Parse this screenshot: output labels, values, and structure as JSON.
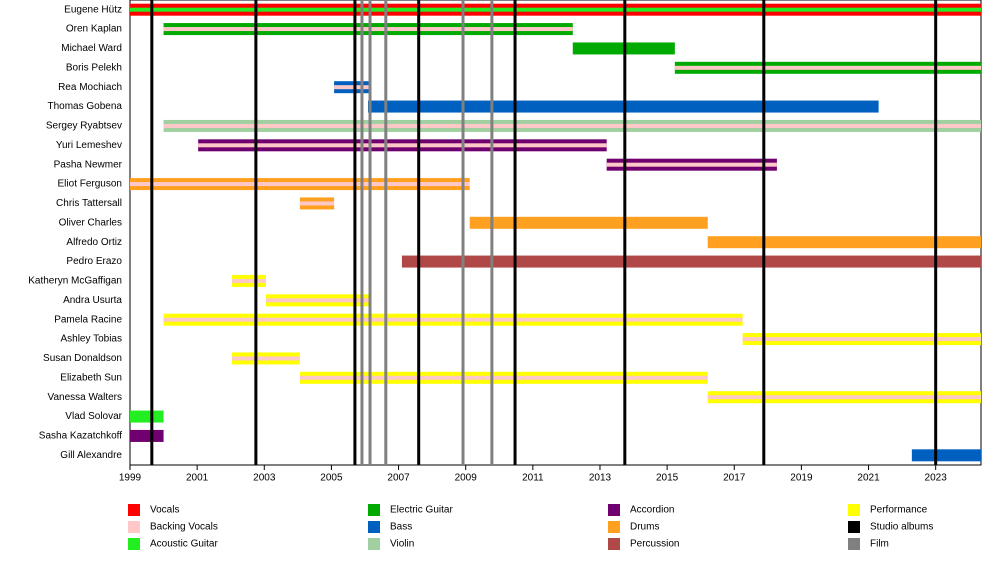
{
  "chart_data": {
    "type": "timeline",
    "xlim": [
      1999,
      2024.35
    ],
    "xticks": [
      1999,
      2001,
      2003,
      2005,
      2007,
      2009,
      2011,
      2013,
      2015,
      2017,
      2019,
      2021,
      2023
    ],
    "roles": [
      {
        "name": "Vocals",
        "color": "#ff0000"
      },
      {
        "name": "Backing Vocals",
        "color": "#ffc8c8"
      },
      {
        "name": "Acoustic Guitar",
        "color": "#22ee22"
      },
      {
        "name": "Electric Guitar",
        "color": "#00aa00"
      },
      {
        "name": "Bass",
        "color": "#0060c0"
      },
      {
        "name": "Violin",
        "color": "#a0d0a0"
      },
      {
        "name": "Accordion",
        "color": "#700070"
      },
      {
        "name": "Drums",
        "color": "#ffa020"
      },
      {
        "name": "Percussion",
        "color": "#b04848"
      },
      {
        "name": "Performance",
        "color": "#ffff00"
      }
    ],
    "lines": [
      {
        "name": "Studio albums",
        "color": "#000000",
        "x": [
          1999.65,
          2002.75,
          2005.7,
          2007.6,
          2010.47,
          2013.74,
          2017.88,
          2023.0
        ]
      },
      {
        "name": "Film",
        "color": "#808080",
        "x": [
          2005.91,
          2006.15,
          2006.62,
          2008.92,
          2009.78
        ]
      }
    ],
    "members": [
      {
        "name": "Eugene Hütz",
        "bars": [
          {
            "start": 1999,
            "end": 2024.35,
            "roles": [
              "Vocals",
              "Acoustic Guitar"
            ]
          }
        ]
      },
      {
        "name": "Oren Kaplan",
        "bars": [
          {
            "start": 2000,
            "end": 2012.19,
            "roles": [
              "Electric Guitar",
              "Backing Vocals"
            ]
          }
        ]
      },
      {
        "name": "Michael Ward",
        "bars": [
          {
            "start": 2012.19,
            "end": 2015.23,
            "roles": [
              "Electric Guitar"
            ]
          }
        ]
      },
      {
        "name": "Boris Pelekh",
        "bars": [
          {
            "start": 2015.23,
            "end": 2024.35,
            "roles": [
              "Electric Guitar",
              "Backing Vocals"
            ]
          }
        ]
      },
      {
        "name": "Rea Mochiach",
        "bars": [
          {
            "start": 2005.08,
            "end": 2006.15,
            "roles": [
              "Bass",
              "Backing Vocals"
            ]
          }
        ]
      },
      {
        "name": "Thomas Gobena",
        "bars": [
          {
            "start": 2006.09,
            "end": 2021.3,
            "roles": [
              "Bass"
            ]
          }
        ]
      },
      {
        "name": "Sergey Ryabtsev",
        "bars": [
          {
            "start": 2000,
            "end": 2024.35,
            "roles": [
              "Violin",
              "Backing Vocals"
            ]
          }
        ]
      },
      {
        "name": "Yuri Lemeshev",
        "bars": [
          {
            "start": 2001.03,
            "end": 2013.2,
            "roles": [
              "Accordion",
              "Backing Vocals"
            ]
          }
        ]
      },
      {
        "name": "Pasha Newmer",
        "bars": [
          {
            "start": 2013.2,
            "end": 2018.27,
            "roles": [
              "Accordion",
              "Backing Vocals"
            ]
          }
        ]
      },
      {
        "name": "Eliot Ferguson",
        "bars": [
          {
            "start": 1999,
            "end": 2009.12,
            "roles": [
              "Drums",
              "Backing Vocals"
            ]
          }
        ]
      },
      {
        "name": "Chris Tattersall",
        "bars": [
          {
            "start": 2004.06,
            "end": 2005.08,
            "roles": [
              "Drums",
              "Backing Vocals"
            ]
          }
        ]
      },
      {
        "name": "Oliver Charles",
        "bars": [
          {
            "start": 2009.12,
            "end": 2016.21,
            "roles": [
              "Drums"
            ]
          }
        ]
      },
      {
        "name": "Alfredo Ortiz",
        "bars": [
          {
            "start": 2016.21,
            "end": 2024.35,
            "roles": [
              "Drums"
            ]
          }
        ]
      },
      {
        "name": "Pedro Erazo",
        "bars": [
          {
            "start": 2007.1,
            "end": 2024.35,
            "roles": [
              "Percussion"
            ]
          }
        ]
      },
      {
        "name": "Katheryn McGaffigan",
        "bars": [
          {
            "start": 2002.04,
            "end": 2003.05,
            "roles": [
              "Performance",
              "Backing Vocals"
            ]
          }
        ]
      },
      {
        "name": "Andra Usurta",
        "bars": [
          {
            "start": 2003.05,
            "end": 2006.15,
            "roles": [
              "Performance",
              "Backing Vocals"
            ]
          }
        ]
      },
      {
        "name": "Pamela Racine",
        "bars": [
          {
            "start": 2000,
            "end": 2017.25,
            "roles": [
              "Performance",
              "Backing Vocals"
            ]
          }
        ]
      },
      {
        "name": "Ashley Tobias",
        "bars": [
          {
            "start": 2017.25,
            "end": 2024.35,
            "roles": [
              "Performance",
              "Backing Vocals"
            ]
          }
        ]
      },
      {
        "name": "Susan Donaldson",
        "bars": [
          {
            "start": 2002.04,
            "end": 2004.06,
            "roles": [
              "Performance",
              "Backing Vocals"
            ]
          }
        ]
      },
      {
        "name": "Elizabeth Sun",
        "bars": [
          {
            "start": 2004.06,
            "end": 2016.21,
            "roles": [
              "Performance",
              "Backing Vocals"
            ]
          }
        ]
      },
      {
        "name": "Vanessa Walters",
        "bars": [
          {
            "start": 2016.21,
            "end": 2024.35,
            "roles": [
              "Performance",
              "Backing Vocals"
            ]
          }
        ]
      },
      {
        "name": "Vlad Solovar",
        "bars": [
          {
            "start": 1999,
            "end": 2000,
            "roles": [
              "Acoustic Guitar"
            ]
          }
        ]
      },
      {
        "name": "Sasha Kazatchkoff",
        "bars": [
          {
            "start": 1999,
            "end": 2000,
            "roles": [
              "Accordion"
            ]
          }
        ]
      },
      {
        "name": "Gill Alexandre",
        "bars": [
          {
            "start": 2022.29,
            "end": 2024.35,
            "roles": [
              "Bass"
            ]
          }
        ]
      }
    ]
  }
}
